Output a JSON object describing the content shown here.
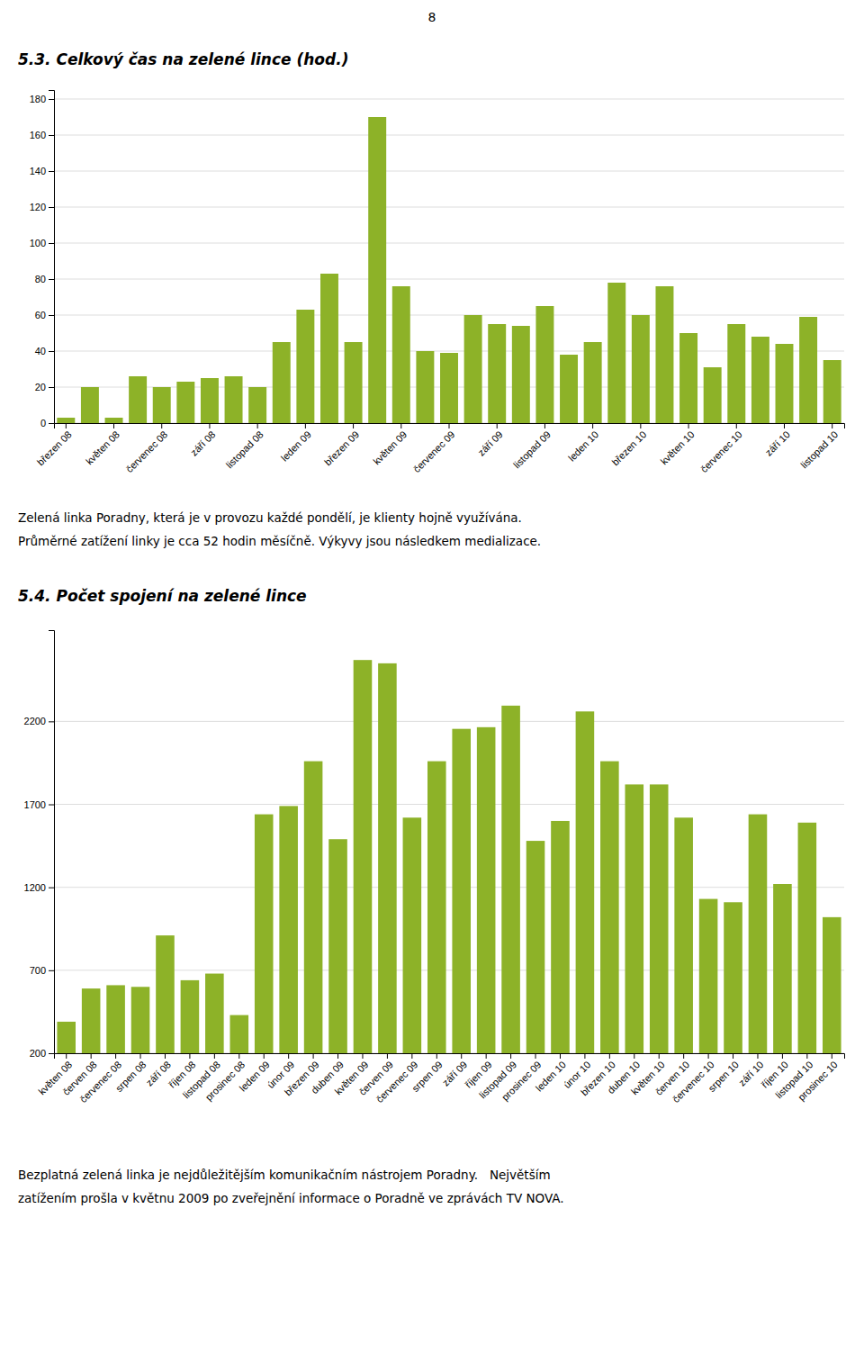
{
  "page_number": "8",
  "chart_data": [
    {
      "type": "bar",
      "title": "5.3. Celkový čas na zelené lince (hod.)",
      "categories": [
        "březen 08",
        null,
        "květen 08",
        null,
        "červenec 08",
        null,
        "září 08",
        null,
        "listopad 08",
        null,
        "leden 09",
        null,
        "březen 09",
        null,
        "květen 09",
        null,
        "červenec 09",
        null,
        "září 09",
        null,
        "listopad 09",
        null,
        "leden 10",
        null,
        "březen 10",
        null,
        "květen 10",
        null,
        "červenec 10",
        null,
        "září 10",
        null,
        "listopad 10"
      ],
      "values": [
        3,
        20,
        3,
        26,
        20,
        23,
        25,
        26,
        20,
        45,
        63,
        83,
        45,
        170,
        76,
        40,
        39,
        60,
        55,
        54,
        65,
        38,
        45,
        78,
        60,
        76,
        50,
        31,
        55,
        48,
        44,
        59,
        35
      ],
      "color": "#8db228",
      "ylim": [
        0,
        185
      ],
      "yticks": [
        0,
        20,
        40,
        60,
        80,
        100,
        120,
        140,
        160,
        180
      ],
      "grid": true,
      "annotations": [
        "Zelená linka Poradny, která je v provozu každé pondělí, je klienty hojně využívána.",
        "Průměrné zatížení linky je cca 52 hodin měsíčně. Výkyvy jsou následkem medializace."
      ]
    },
    {
      "type": "bar",
      "title": "5.4. Počet spojení na zelené lince",
      "categories": [
        "květen 08",
        "červen 08",
        "červenec 08",
        "srpen 08",
        "září 08",
        "říjen 08",
        "listopad 08",
        "prosinec 08",
        "leden 09",
        "únor 09",
        "březen 09",
        "duben 09",
        "květen 09",
        "červen 09",
        "červenec 09",
        "srpen 09",
        "září 09",
        "říjen 09",
        "listopad 09",
        "prosinec 09",
        "leden 10",
        "únor 10",
        "březen 10",
        "duben 10",
        "květen 10",
        "červen 10",
        "červenec 10",
        "srpen 10",
        "září 10",
        "říjen 10",
        "listopad 10",
        "prosinec 10"
      ],
      "values": [
        390,
        590,
        610,
        600,
        910,
        640,
        680,
        430,
        1640,
        1690,
        1960,
        1490,
        2570,
        2550,
        1620,
        1960,
        2155,
        2165,
        2295,
        1480,
        1600,
        2260,
        1960,
        1820,
        1820,
        1620,
        1130,
        1110,
        1640,
        1220,
        1590,
        1020
      ],
      "color": "#8db228",
      "ylim": [
        200,
        2750
      ],
      "yticks": [
        200,
        700,
        1200,
        1700,
        2200
      ],
      "grid": true,
      "annotations": [
        "Bezplatná zelená linka je nejdůležitějším komunikačním nástrojem Poradny.   Největším",
        "zatížením prošla v květnu 2009 po zveřejnění informace o Poradně ve zprávách TV NOVA."
      ]
    }
  ]
}
